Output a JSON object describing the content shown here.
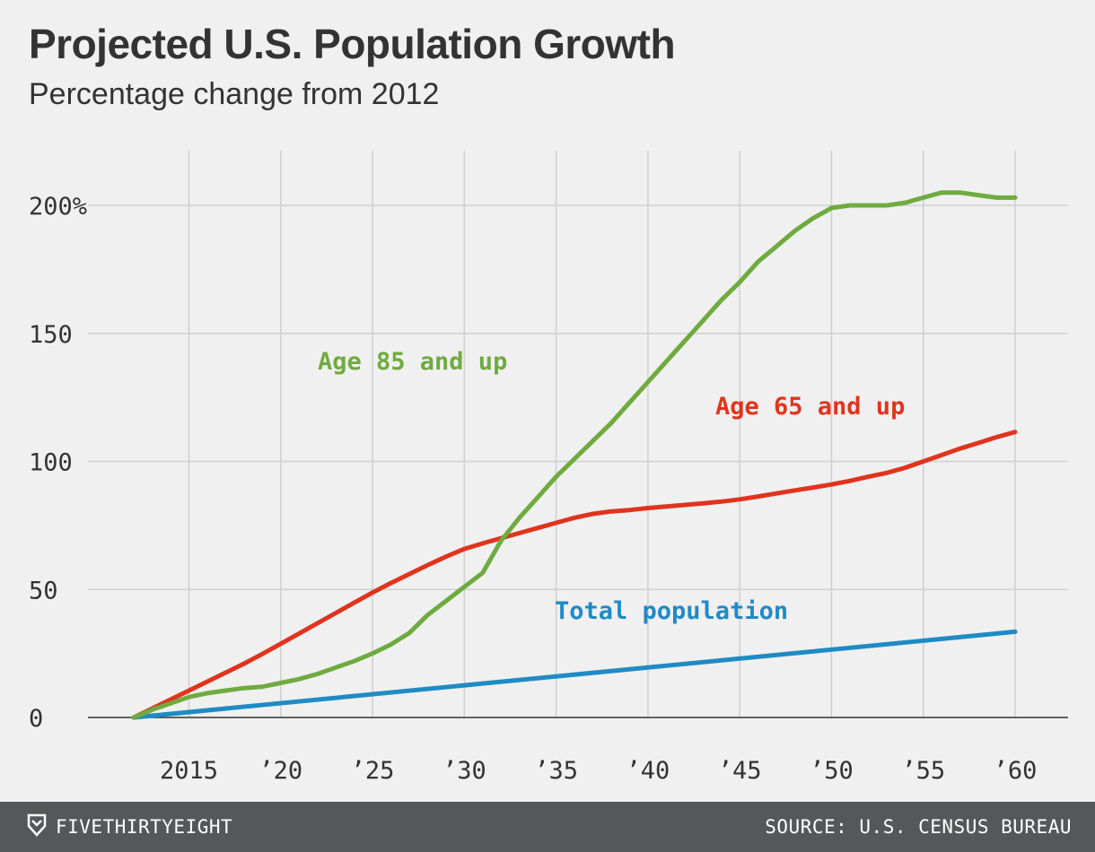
{
  "header": {
    "title": "Projected U.S. Population Growth",
    "subtitle": "Percentage change from 2012"
  },
  "footer": {
    "brand": "FIVETHIRTYEIGHT",
    "logo_icon": "fivethirtyeight-logo-icon",
    "source": "SOURCE: U.S. CENSUS BUREAU"
  },
  "chart_data": {
    "type": "line",
    "title": "Projected U.S. Population Growth",
    "subtitle": "Percentage change from 2012",
    "xlabel": "",
    "ylabel": "",
    "xlim": [
      2012,
      2060
    ],
    "ylim": [
      0,
      200
    ],
    "grid": true,
    "x_ticks": [
      {
        "value": 2015,
        "label": "2015"
      },
      {
        "value": 2020,
        "label": "’20"
      },
      {
        "value": 2025,
        "label": "’25"
      },
      {
        "value": 2030,
        "label": "’30"
      },
      {
        "value": 2035,
        "label": "’35"
      },
      {
        "value": 2040,
        "label": "’40"
      },
      {
        "value": 2045,
        "label": "’45"
      },
      {
        "value": 2050,
        "label": "’50"
      },
      {
        "value": 2055,
        "label": "’55"
      },
      {
        "value": 2060,
        "label": "’60"
      }
    ],
    "y_ticks": [
      {
        "value": 0,
        "label": "0"
      },
      {
        "value": 50,
        "label": "50"
      },
      {
        "value": 100,
        "label": "100"
      },
      {
        "value": 150,
        "label": "150"
      },
      {
        "value": 200,
        "label": "200%"
      }
    ],
    "series": [
      {
        "name": "Age 85 and up",
        "color": "#6fab3f",
        "x": [
          2012,
          2013,
          2014,
          2015,
          2016,
          2017,
          2018,
          2019,
          2020,
          2021,
          2022,
          2023,
          2024,
          2025,
          2026,
          2027,
          2028,
          2029,
          2030,
          2031,
          2032,
          2033,
          2034,
          2035,
          2036,
          2037,
          2038,
          2039,
          2040,
          2041,
          2042,
          2043,
          2044,
          2045,
          2046,
          2047,
          2048,
          2049,
          2050,
          2051,
          2052,
          2053,
          2054,
          2055,
          2056,
          2057,
          2058,
          2059,
          2060
        ],
        "values": [
          0,
          3,
          5.5,
          8,
          9.5,
          10.5,
          11.5,
          12,
          13.5,
          15,
          17,
          19.5,
          22,
          25,
          28.5,
          33,
          40,
          45.5,
          51,
          56.5,
          69,
          78,
          86,
          94,
          101,
          108,
          115,
          123,
          131,
          139,
          147,
          155,
          163,
          170,
          178,
          184,
          190,
          195,
          199,
          200,
          200,
          200,
          201,
          203,
          205,
          205,
          204,
          203,
          203
        ]
      },
      {
        "name": "Age 65 and up",
        "color": "#e0341e",
        "x": [
          2012,
          2013,
          2014,
          2015,
          2016,
          2017,
          2018,
          2019,
          2020,
          2021,
          2022,
          2023,
          2024,
          2025,
          2026,
          2027,
          2028,
          2029,
          2030,
          2031,
          2032,
          2033,
          2034,
          2035,
          2036,
          2037,
          2038,
          2039,
          2040,
          2041,
          2042,
          2043,
          2044,
          2045,
          2046,
          2047,
          2048,
          2049,
          2050,
          2051,
          2052,
          2053,
          2054,
          2055,
          2056,
          2057,
          2058,
          2059,
          2060
        ],
        "values": [
          0,
          3.5,
          7,
          10.5,
          14,
          17.5,
          21,
          24.8,
          28.8,
          32.8,
          36.8,
          40.8,
          44.8,
          48.8,
          52.5,
          56,
          59.5,
          62.8,
          65.8,
          68,
          70,
          72,
          74,
          76,
          78,
          79.5,
          80.5,
          81,
          81.8,
          82.4,
          83,
          83.6,
          84.3,
          85.2,
          86.3,
          87.5,
          88.7,
          89.8,
          91,
          92.4,
          94,
          95.5,
          97.5,
          100,
          102.5,
          105,
          107.2,
          109.5,
          111.5
        ]
      },
      {
        "name": "Total population",
        "color": "#1f8bc4",
        "x": [
          2012,
          2060
        ],
        "values": [
          0,
          33.5
        ]
      }
    ]
  }
}
